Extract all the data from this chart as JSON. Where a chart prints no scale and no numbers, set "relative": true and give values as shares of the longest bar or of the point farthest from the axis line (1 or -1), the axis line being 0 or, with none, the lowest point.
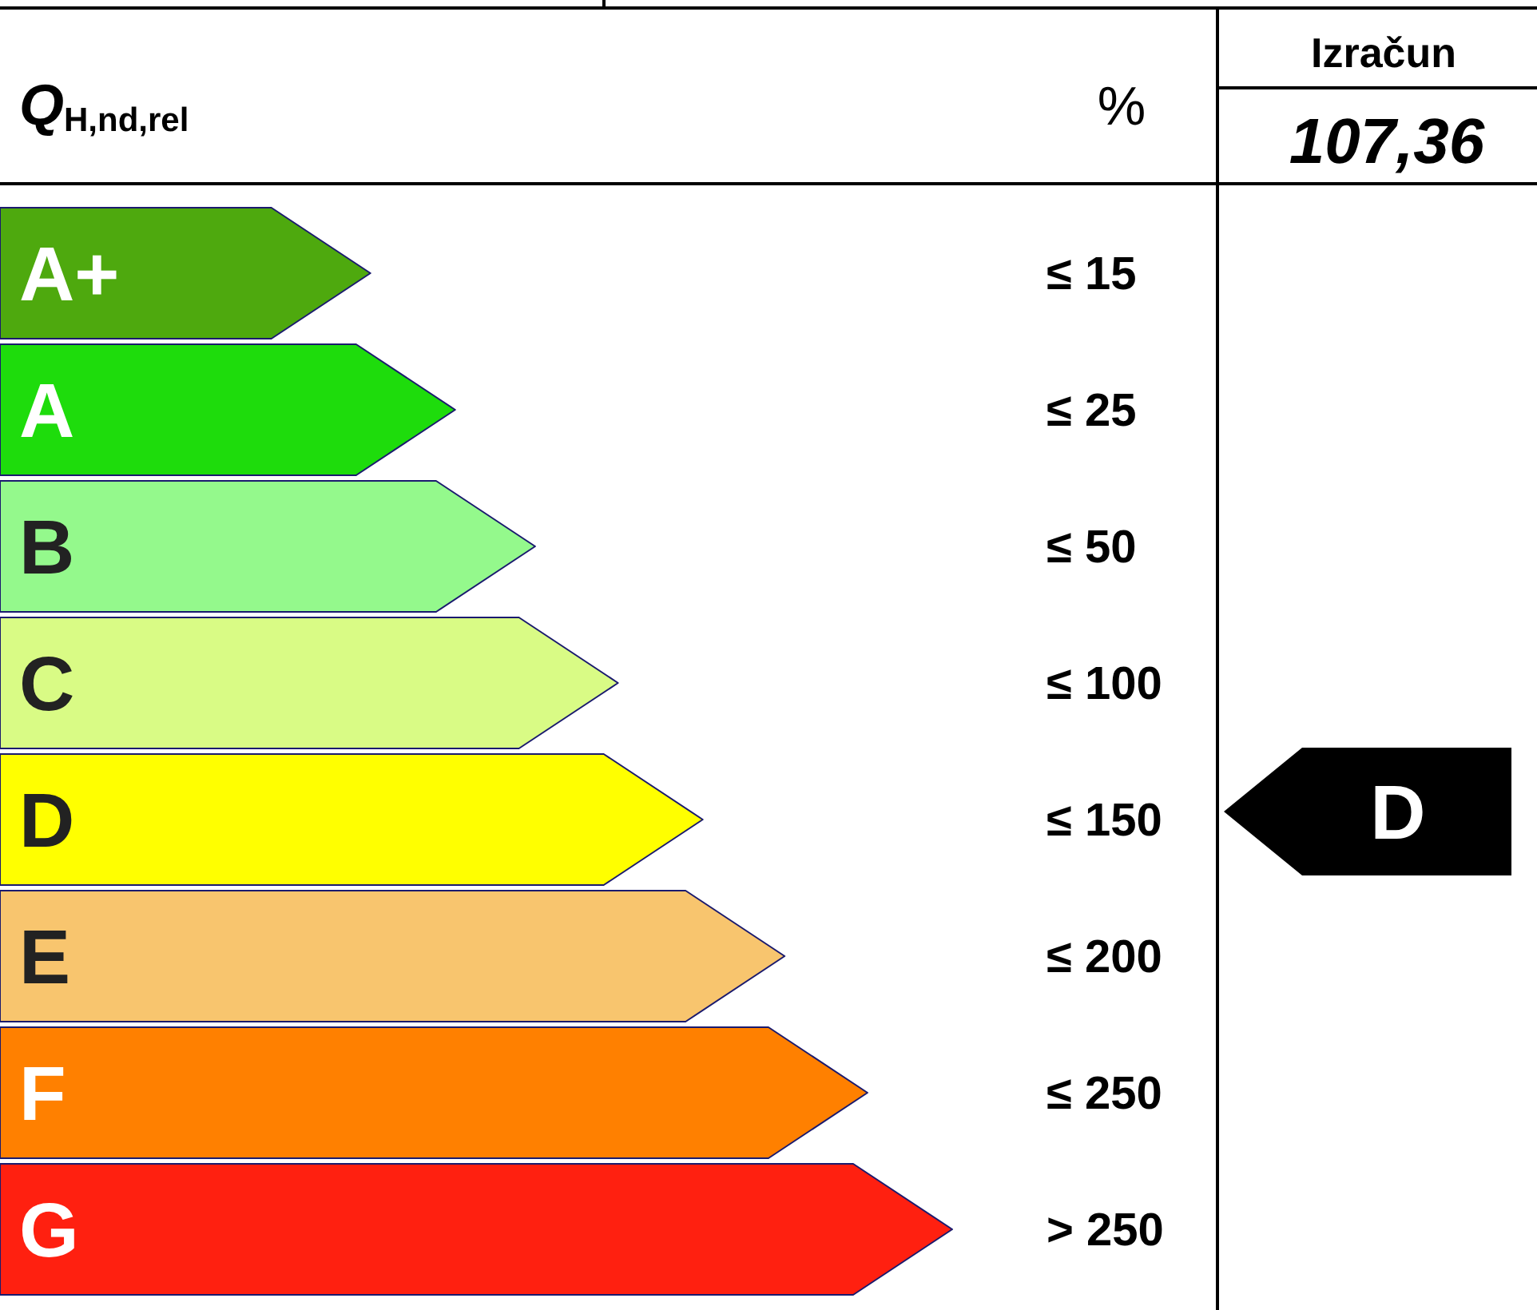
{
  "chart_data": {
    "type": "bar",
    "orientation": "horizontal",
    "relative": true,
    "title": "Q$_{H,nd,rel}$",
    "xlabel": "%",
    "categories": [
      "A+",
      "A",
      "B",
      "C",
      "D",
      "E",
      "F",
      "G"
    ],
    "values": [
      0.389,
      0.478,
      0.562,
      0.649,
      0.738,
      0.824,
      0.911,
      1
    ],
    "colors": [
      "#4ea90e",
      "#1edc0c",
      "#94f98c",
      "#d9fb85",
      "#ffff00",
      "#f8c56e",
      "#ff8000",
      "#ff2010"
    ],
    "annotations": [
      "Izračun",
      "107,36",
      "D",
      "≤ 15",
      "≤ 25",
      "≤ 50",
      "≤ 100",
      "≤ 150",
      "≤ 200",
      "≤ 250",
      "> 250"
    ]
  }
}
